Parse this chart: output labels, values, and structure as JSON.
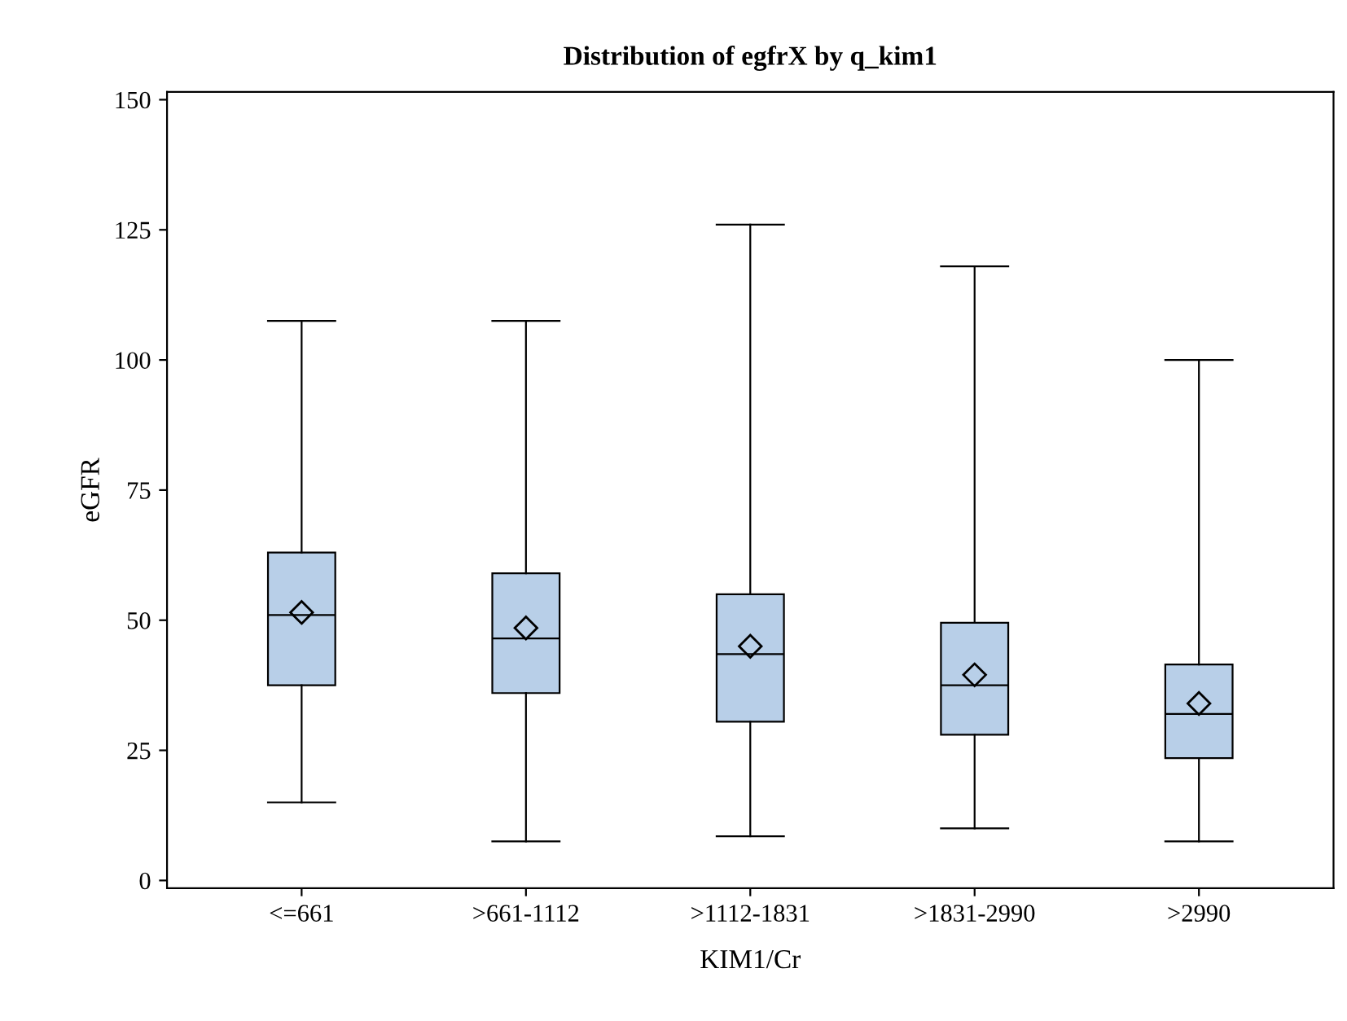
{
  "chart_data": {
    "type": "box",
    "title": "Distribution of egfrX by q_kim1",
    "xlabel": "KIM1/Cr",
    "ylabel": "eGFR",
    "categories": [
      "<=661",
      ">661-1112",
      ">1112-1831",
      ">1831-2990",
      ">2990"
    ],
    "color": "#b8cfe8",
    "boxes": [
      {
        "low": 15,
        "q1": 37.5,
        "median": 51,
        "q3": 63,
        "high": 107.5,
        "mean": 51.5
      },
      {
        "low": 7.5,
        "q1": 36,
        "median": 46.5,
        "q3": 59,
        "high": 107.5,
        "mean": 48.5
      },
      {
        "low": 8.5,
        "q1": 30.5,
        "median": 43.5,
        "q3": 55,
        "high": 126,
        "mean": 45
      },
      {
        "low": 10,
        "q1": 28,
        "median": 37.5,
        "q3": 49.5,
        "high": 118,
        "mean": 39.5
      },
      {
        "low": 7.5,
        "q1": 23.5,
        "median": 32,
        "q3": 41.5,
        "high": 100,
        "mean": 34
      }
    ],
    "marker": "diamond",
    "ylim": [
      -1.5,
      151.5
    ],
    "yticks": [
      0,
      25,
      50,
      75,
      100,
      125,
      150
    ],
    "grid": false
  }
}
